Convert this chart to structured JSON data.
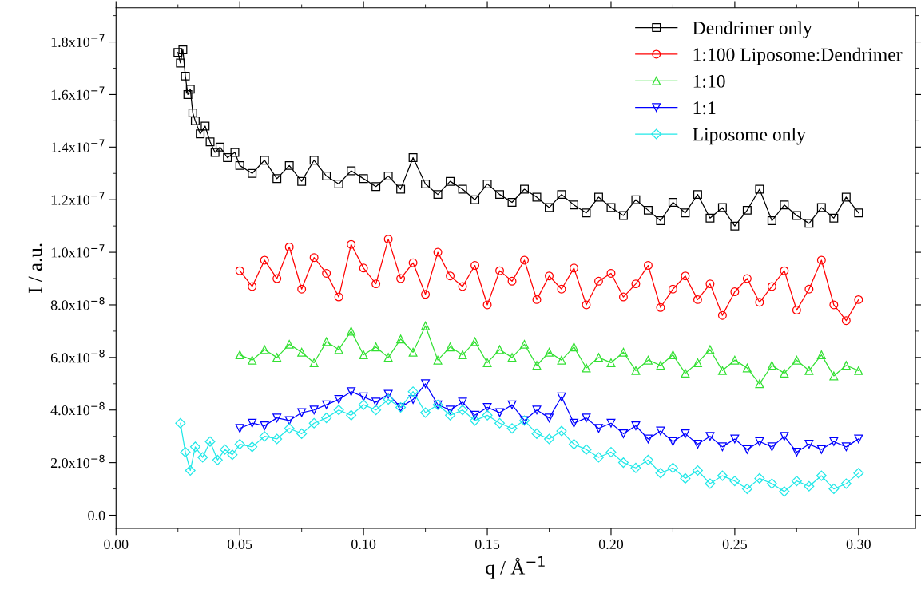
{
  "chart_data": {
    "type": "line",
    "xlabel": "q / Å$^{−1}$",
    "ylabel": "I / a.u.",
    "xlim": [
      0,
      0.323
    ],
    "ylim": [
      -5e-09,
      1.93e-07
    ],
    "xticks": [
      {
        "value": 0,
        "label": "0.00"
      },
      {
        "value": 0.05,
        "label": "0.05"
      },
      {
        "value": 0.1,
        "label": "0.10"
      },
      {
        "value": 0.15,
        "label": "0.15"
      },
      {
        "value": 0.2,
        "label": "0.20"
      },
      {
        "value": 0.25,
        "label": "0.25"
      },
      {
        "value": 0.3,
        "label": "0.30"
      }
    ],
    "yticks": [
      {
        "value": 0,
        "label": "0.0"
      },
      {
        "value": 2e-08,
        "label": "2.0x10$^{−8}$"
      },
      {
        "value": 4e-08,
        "label": "4.0x10$^{−8}$"
      },
      {
        "value": 6e-08,
        "label": "6.0x10$^{−8}$"
      },
      {
        "value": 8e-08,
        "label": "8.0x10$^{−8}$"
      },
      {
        "value": 1e-07,
        "label": "1.0x10$^{−7}$"
      },
      {
        "value": 1.2e-07,
        "label": "1.2x10$^{−7}$"
      },
      {
        "value": 1.4e-07,
        "label": "1.4x10$^{−7}$"
      },
      {
        "value": 1.6e-07,
        "label": "1.6x10$^{−7}$"
      },
      {
        "value": 1.8e-07,
        "label": "1.8x10$^{−7}$"
      }
    ],
    "legend": "top right",
    "grid": false,
    "line_style": "solid",
    "series": [
      {
        "name": "Dendrimer only",
        "color": "#000000",
        "marker": "square",
        "x": [
          0.025,
          0.026,
          0.027,
          0.028,
          0.029,
          0.03,
          0.031,
          0.032,
          0.034,
          0.036,
          0.038,
          0.04,
          0.042,
          0.045,
          0.048,
          0.05,
          0.055,
          0.06,
          0.065,
          0.07,
          0.075,
          0.08,
          0.085,
          0.09,
          0.095,
          0.1,
          0.105,
          0.11,
          0.115,
          0.12,
          0.125,
          0.13,
          0.135,
          0.14,
          0.145,
          0.15,
          0.155,
          0.16,
          0.165,
          0.17,
          0.175,
          0.18,
          0.185,
          0.19,
          0.195,
          0.2,
          0.205,
          0.21,
          0.215,
          0.22,
          0.225,
          0.23,
          0.235,
          0.24,
          0.245,
          0.25,
          0.255,
          0.26,
          0.265,
          0.27,
          0.275,
          0.28,
          0.285,
          0.29,
          0.295,
          0.3
        ],
        "values": [
          1.76e-07,
          1.72e-07,
          1.77e-07,
          1.67e-07,
          1.6e-07,
          1.62e-07,
          1.53e-07,
          1.5e-07,
          1.45e-07,
          1.48e-07,
          1.42e-07,
          1.38e-07,
          1.4e-07,
          1.36e-07,
          1.38e-07,
          1.33e-07,
          1.3e-07,
          1.35e-07,
          1.28e-07,
          1.33e-07,
          1.27e-07,
          1.35e-07,
          1.29e-07,
          1.26e-07,
          1.31e-07,
          1.28e-07,
          1.25e-07,
          1.29e-07,
          1.24e-07,
          1.36e-07,
          1.26e-07,
          1.22e-07,
          1.27e-07,
          1.24e-07,
          1.2e-07,
          1.26e-07,
          1.22e-07,
          1.19e-07,
          1.24e-07,
          1.21e-07,
          1.17e-07,
          1.22e-07,
          1.18e-07,
          1.15e-07,
          1.21e-07,
          1.17e-07,
          1.14e-07,
          1.2e-07,
          1.16e-07,
          1.12e-07,
          1.19e-07,
          1.15e-07,
          1.22e-07,
          1.13e-07,
          1.17e-07,
          1.1e-07,
          1.16e-07,
          1.24e-07,
          1.12e-07,
          1.18e-07,
          1.14e-07,
          1.11e-07,
          1.17e-07,
          1.13e-07,
          1.21e-07,
          1.15e-07
        ]
      },
      {
        "name": "1:100 Liposome:Dendrimer",
        "color": "#ff0000",
        "marker": "circle",
        "x": [
          0.05,
          0.055,
          0.06,
          0.065,
          0.07,
          0.075,
          0.08,
          0.085,
          0.09,
          0.095,
          0.1,
          0.105,
          0.11,
          0.115,
          0.12,
          0.125,
          0.13,
          0.135,
          0.14,
          0.145,
          0.15,
          0.155,
          0.16,
          0.165,
          0.17,
          0.175,
          0.18,
          0.185,
          0.19,
          0.195,
          0.2,
          0.205,
          0.21,
          0.215,
          0.22,
          0.225,
          0.23,
          0.235,
          0.24,
          0.245,
          0.25,
          0.255,
          0.26,
          0.265,
          0.27,
          0.275,
          0.28,
          0.285,
          0.29,
          0.295,
          0.3
        ],
        "values": [
          9.3e-08,
          8.7e-08,
          9.7e-08,
          9e-08,
          1.02e-07,
          8.6e-08,
          9.8e-08,
          9.2e-08,
          8.3e-08,
          1.03e-07,
          9.4e-08,
          8.8e-08,
          1.05e-07,
          9e-08,
          9.6e-08,
          8.4e-08,
          1e-07,
          9.1e-08,
          8.7e-08,
          9.5e-08,
          8e-08,
          9.3e-08,
          8.9e-08,
          9.7e-08,
          8.2e-08,
          9.1e-08,
          8.6e-08,
          9.4e-08,
          8e-08,
          8.9e-08,
          9.2e-08,
          8.3e-08,
          8.8e-08,
          9.5e-08,
          7.9e-08,
          8.6e-08,
          9.1e-08,
          8.2e-08,
          8.8e-08,
          7.6e-08,
          8.5e-08,
          9e-08,
          8.1e-08,
          8.7e-08,
          9.3e-08,
          7.8e-08,
          8.6e-08,
          9.7e-08,
          8e-08,
          7.4e-08,
          8.2e-08
        ]
      },
      {
        "name": "1:10",
        "color": "#33e033",
        "marker": "triangle",
        "x": [
          0.05,
          0.055,
          0.06,
          0.065,
          0.07,
          0.075,
          0.08,
          0.085,
          0.09,
          0.095,
          0.1,
          0.105,
          0.11,
          0.115,
          0.12,
          0.125,
          0.13,
          0.135,
          0.14,
          0.145,
          0.15,
          0.155,
          0.16,
          0.165,
          0.17,
          0.175,
          0.18,
          0.185,
          0.19,
          0.195,
          0.2,
          0.205,
          0.21,
          0.215,
          0.22,
          0.225,
          0.23,
          0.235,
          0.24,
          0.245,
          0.25,
          0.255,
          0.26,
          0.265,
          0.27,
          0.275,
          0.28,
          0.285,
          0.29,
          0.295,
          0.3
        ],
        "values": [
          6.1e-08,
          5.9e-08,
          6.3e-08,
          6e-08,
          6.5e-08,
          6.2e-08,
          5.8e-08,
          6.6e-08,
          6.3e-08,
          7e-08,
          6.1e-08,
          6.4e-08,
          6e-08,
          6.7e-08,
          6.2e-08,
          7.2e-08,
          5.9e-08,
          6.4e-08,
          6.1e-08,
          6.6e-08,
          5.8e-08,
          6.3e-08,
          6e-08,
          6.5e-08,
          5.7e-08,
          6.2e-08,
          5.9e-08,
          6.4e-08,
          5.6e-08,
          6e-08,
          5.8e-08,
          6.2e-08,
          5.5e-08,
          5.9e-08,
          5.7e-08,
          6.1e-08,
          5.4e-08,
          5.8e-08,
          6.3e-08,
          5.5e-08,
          5.9e-08,
          5.6e-08,
          5e-08,
          5.7e-08,
          5.4e-08,
          5.9e-08,
          5.5e-08,
          6.1e-08,
          5.3e-08,
          5.7e-08,
          5.5e-08
        ]
      },
      {
        "name": "1:1",
        "color": "#0000ff",
        "marker": "triangle_down",
        "x": [
          0.05,
          0.055,
          0.06,
          0.065,
          0.07,
          0.075,
          0.08,
          0.085,
          0.09,
          0.095,
          0.1,
          0.105,
          0.11,
          0.115,
          0.12,
          0.125,
          0.13,
          0.135,
          0.14,
          0.145,
          0.15,
          0.155,
          0.16,
          0.165,
          0.17,
          0.175,
          0.18,
          0.185,
          0.19,
          0.195,
          0.2,
          0.205,
          0.21,
          0.215,
          0.22,
          0.225,
          0.23,
          0.235,
          0.24,
          0.245,
          0.25,
          0.255,
          0.26,
          0.265,
          0.27,
          0.275,
          0.28,
          0.285,
          0.29,
          0.295,
          0.3
        ],
        "values": [
          3.3e-08,
          3.5e-08,
          3.4e-08,
          3.7e-08,
          3.6e-08,
          3.9e-08,
          4e-08,
          4.2e-08,
          4.4e-08,
          4.7e-08,
          4.5e-08,
          4.3e-08,
          4.6e-08,
          4.1e-08,
          4.4e-08,
          5e-08,
          4.2e-08,
          4e-08,
          4.3e-08,
          3.8e-08,
          4.1e-08,
          3.9e-08,
          4.2e-08,
          3.6e-08,
          4e-08,
          3.7e-08,
          4.5e-08,
          3.5e-08,
          3.7e-08,
          3.3e-08,
          3.5e-08,
          3.1e-08,
          3.4e-08,
          2.9e-08,
          3.2e-08,
          2.8e-08,
          3.1e-08,
          2.7e-08,
          3e-08,
          2.6e-08,
          2.9e-08,
          2.5e-08,
          2.8e-08,
          2.6e-08,
          3e-08,
          2.4e-08,
          2.7e-08,
          2.5e-08,
          2.8e-08,
          2.6e-08,
          2.9e-08
        ]
      },
      {
        "name": "Liposome only",
        "color": "#22e8e8",
        "marker": "diamond",
        "x": [
          0.026,
          0.028,
          0.03,
          0.032,
          0.035,
          0.038,
          0.041,
          0.044,
          0.047,
          0.05,
          0.055,
          0.06,
          0.065,
          0.07,
          0.075,
          0.08,
          0.085,
          0.09,
          0.095,
          0.1,
          0.105,
          0.11,
          0.115,
          0.12,
          0.125,
          0.13,
          0.135,
          0.14,
          0.145,
          0.15,
          0.155,
          0.16,
          0.165,
          0.17,
          0.175,
          0.18,
          0.185,
          0.19,
          0.195,
          0.2,
          0.205,
          0.21,
          0.215,
          0.22,
          0.225,
          0.23,
          0.235,
          0.24,
          0.245,
          0.25,
          0.255,
          0.26,
          0.265,
          0.27,
          0.275,
          0.28,
          0.285,
          0.29,
          0.295,
          0.3
        ],
        "values": [
          3.5e-08,
          2.4e-08,
          1.7e-08,
          2.6e-08,
          2.2e-08,
          2.8e-08,
          2.1e-08,
          2.5e-08,
          2.3e-08,
          2.7e-08,
          2.6e-08,
          3e-08,
          2.9e-08,
          3.3e-08,
          3.1e-08,
          3.5e-08,
          3.7e-08,
          4e-08,
          3.8e-08,
          4.2e-08,
          4e-08,
          4.4e-08,
          4.1e-08,
          4.7e-08,
          3.9e-08,
          4.2e-08,
          3.8e-08,
          4e-08,
          3.6e-08,
          3.8e-08,
          3.5e-08,
          3.3e-08,
          3.6e-08,
          3.1e-08,
          2.9e-08,
          3.2e-08,
          2.7e-08,
          2.5e-08,
          2.2e-08,
          2.4e-08,
          2e-08,
          1.8e-08,
          2.1e-08,
          1.6e-08,
          1.8e-08,
          1.4e-08,
          1.7e-08,
          1.2e-08,
          1.5e-08,
          1.3e-08,
          1e-08,
          1.4e-08,
          1.2e-08,
          9e-09,
          1.3e-08,
          1.1e-08,
          1.5e-08,
          1e-08,
          1.2e-08,
          1.6e-08
        ]
      }
    ]
  }
}
